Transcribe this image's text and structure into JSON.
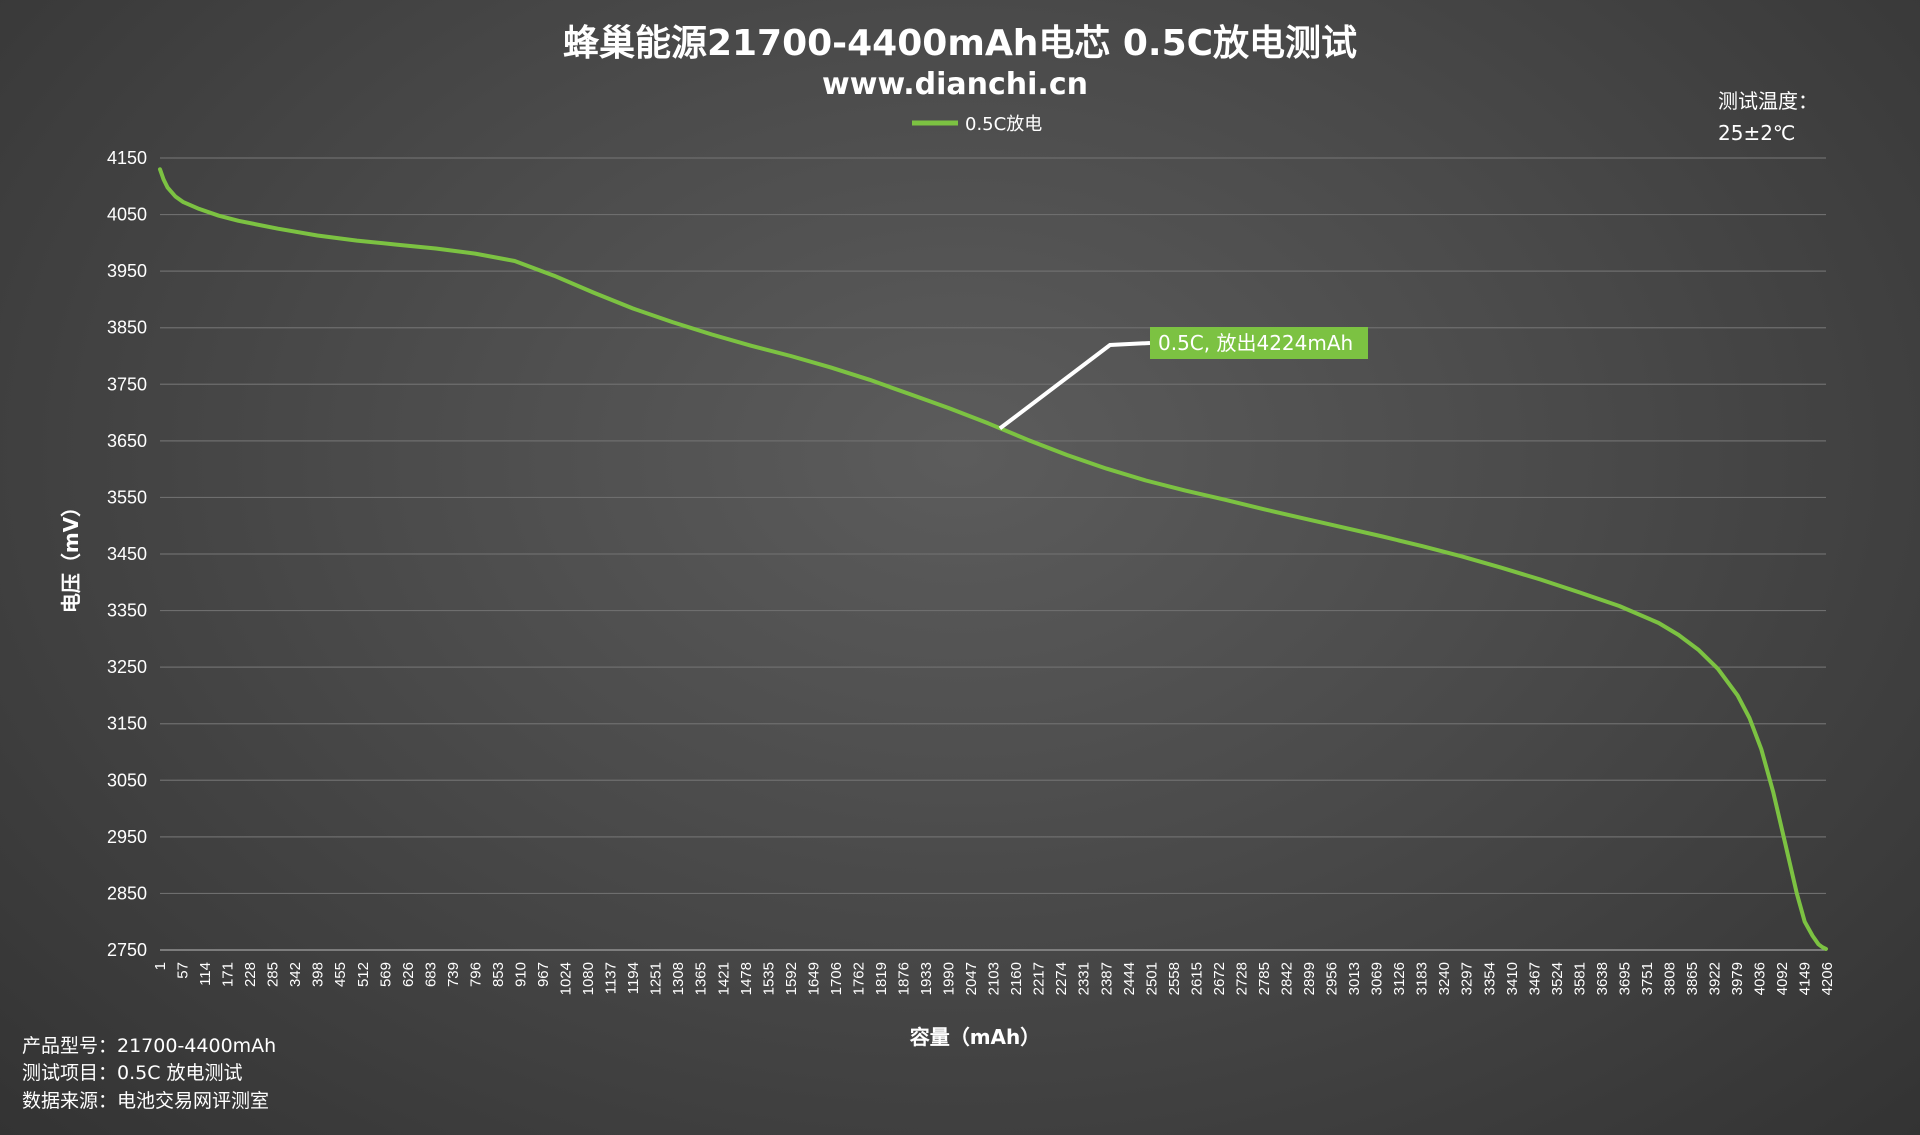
{
  "chart_data": {
    "type": "line",
    "title": "蜂巢能源21700-4400mAh电芯 0.5C放电测试",
    "subtitle": "www.dianchi.cn",
    "xlabel": "容量（mAh）",
    "ylabel": "电压（mV）",
    "ylim": [
      2750,
      4150
    ],
    "xlim": [
      1,
      4224
    ],
    "grid": true,
    "legend_position": "top-center",
    "y_ticks": [
      "4150",
      "4050",
      "3950",
      "3850",
      "3750",
      "3650",
      "3550",
      "3450",
      "3350",
      "3250",
      "3150",
      "3050",
      "2950",
      "2850",
      "2750"
    ],
    "x_ticks": [
      "1",
      "57",
      "114",
      "171",
      "228",
      "285",
      "342",
      "398",
      "455",
      "512",
      "569",
      "626",
      "683",
      "739",
      "796",
      "853",
      "910",
      "967",
      "1024",
      "1080",
      "1137",
      "1194",
      "1251",
      "1308",
      "1365",
      "1421",
      "1478",
      "1535",
      "1592",
      "1649",
      "1706",
      "1762",
      "1819",
      "1876",
      "1933",
      "1990",
      "2047",
      "2103",
      "2160",
      "2217",
      "2274",
      "2331",
      "2387",
      "2444",
      "2501",
      "2558",
      "2615",
      "2672",
      "2728",
      "2785",
      "2842",
      "2899",
      "2956",
      "3013",
      "3069",
      "3126",
      "3183",
      "3240",
      "3297",
      "3354",
      "3410",
      "3467",
      "3524",
      "3581",
      "3638",
      "3695",
      "3751",
      "3808",
      "3865",
      "3922",
      "3979",
      "4036",
      "4092",
      "4149",
      "4206"
    ],
    "series": [
      {
        "name": "0.5C放电",
        "color": "#7cc242",
        "x": [
          1,
          10,
          20,
          40,
          60,
          100,
          150,
          200,
          300,
          400,
          500,
          600,
          700,
          800,
          900,
          1000,
          1100,
          1200,
          1300,
          1400,
          1500,
          1600,
          1700,
          1800,
          1900,
          2000,
          2100,
          2200,
          2300,
          2400,
          2500,
          2600,
          2700,
          2800,
          2900,
          3000,
          3100,
          3200,
          3300,
          3400,
          3500,
          3600,
          3700,
          3800,
          3850,
          3900,
          3950,
          4000,
          4030,
          4060,
          4090,
          4120,
          4150,
          4170,
          4190,
          4205,
          4215,
          4224
        ],
        "y": [
          4130,
          4112,
          4098,
          4082,
          4072,
          4060,
          4048,
          4039,
          4025,
          4013,
          4004,
          3997,
          3990,
          3981,
          3968,
          3942,
          3912,
          3884,
          3860,
          3838,
          3818,
          3800,
          3780,
          3758,
          3733,
          3708,
          3681,
          3652,
          3625,
          3601,
          3580,
          3562,
          3546,
          3529,
          3513,
          3497,
          3481,
          3464,
          3446,
          3426,
          3405,
          3382,
          3358,
          3328,
          3307,
          3281,
          3247,
          3200,
          3160,
          3105,
          3030,
          2940,
          2850,
          2800,
          2775,
          2760,
          2755,
          2752
        ]
      }
    ],
    "annotation": {
      "text": "0.5C, 放出4224mAh",
      "x": 2130,
      "y": 3672,
      "bg_color": "#7cc242"
    }
  },
  "corner_note": {
    "line1": "测试温度：",
    "line2": "25±2℃"
  },
  "footer": {
    "line1": "产品型号：21700-4400mAh",
    "line2": "测试项目：0.5C 放电测试",
    "line3": "数据来源：电池交易网评测室"
  }
}
